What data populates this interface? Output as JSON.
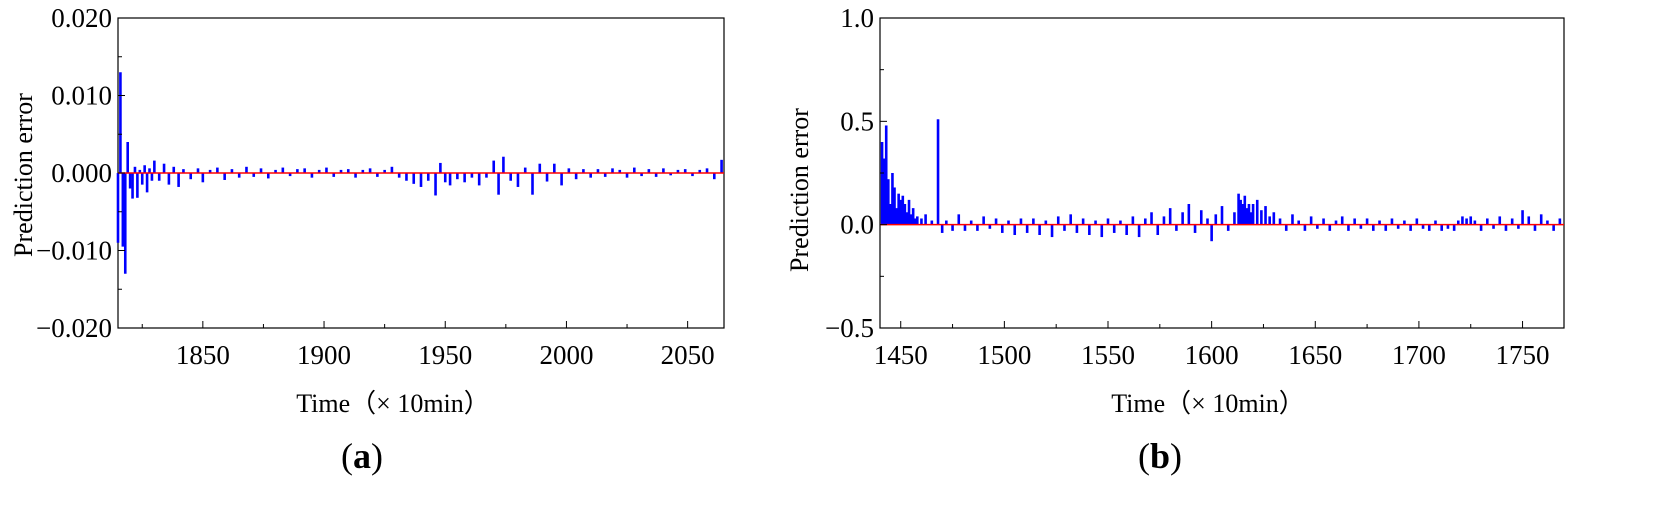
{
  "colors": {
    "series": "#0000ff",
    "zero_line": "#ff0000",
    "axis": "#000000",
    "background": "#ffffff"
  },
  "chart_data": [
    {
      "panel": "a",
      "type": "bar",
      "panel_label_open": "(",
      "panel_label_letter": "a",
      "panel_label_close": ")",
      "xlabel": "Time（× 10min）",
      "ylabel": "Prediction error",
      "xlim": [
        1815,
        2065
      ],
      "ylim": [
        -0.02,
        0.02
      ],
      "xticks": [
        1850,
        1900,
        1950,
        2000,
        2050
      ],
      "xtick_labels": [
        "1850",
        "1900",
        "1950",
        "2000",
        "2050"
      ],
      "yticks": [
        -0.02,
        -0.01,
        0.0,
        0.01,
        0.02
      ],
      "ytick_labels": [
        "−0.020",
        "−0.010",
        "0.000",
        "0.010",
        "0.020"
      ],
      "grid": false,
      "series": [
        {
          "x": [
            1815,
            1816,
            1817,
            1818,
            1819,
            1820,
            1821,
            1822,
            1823,
            1824,
            1825,
            1826,
            1827,
            1828,
            1829,
            1830,
            1832,
            1834,
            1836,
            1838,
            1840,
            1842,
            1845,
            1848,
            1850,
            1853,
            1856,
            1859,
            1862,
            1865,
            1868,
            1871,
            1874,
            1877,
            1880,
            1883,
            1886,
            1889,
            1892,
            1895,
            1898,
            1901,
            1904,
            1907,
            1910,
            1913,
            1916,
            1919,
            1922,
            1925,
            1928,
            1931,
            1934,
            1937,
            1940,
            1943,
            1946,
            1948,
            1950,
            1952,
            1955,
            1958,
            1961,
            1964,
            1967,
            1970,
            1972,
            1974,
            1977,
            1980,
            1983,
            1986,
            1989,
            1992,
            1995,
            1998,
            2001,
            2004,
            2007,
            2010,
            2013,
            2016,
            2019,
            2022,
            2025,
            2028,
            2031,
            2034,
            2037,
            2040,
            2043,
            2046,
            2049,
            2052,
            2055,
            2058,
            2061,
            2064
          ],
          "values": [
            -0.009,
            0.013,
            -0.0095,
            -0.013,
            0.004,
            -0.002,
            -0.0033,
            0.0008,
            -0.0032,
            0.0004,
            -0.0015,
            0.001,
            -0.0025,
            0.0006,
            -0.001,
            0.0016,
            -0.001,
            0.0012,
            -0.0015,
            0.0008,
            -0.0018,
            0.0005,
            -0.0008,
            0.0006,
            -0.0012,
            0.0004,
            0.0007,
            -0.0009,
            0.0005,
            -0.0006,
            0.0008,
            -0.0005,
            0.0006,
            -0.0007,
            0.0004,
            0.0007,
            -0.0004,
            0.0005,
            0.0006,
            -0.0006,
            0.0004,
            0.0007,
            -0.0005,
            0.0004,
            0.0005,
            -0.0006,
            0.0004,
            0.0006,
            -0.0005,
            0.0004,
            0.0008,
            -0.0006,
            -0.001,
            -0.0014,
            -0.0018,
            -0.001,
            -0.0029,
            0.0013,
            -0.0012,
            -0.0016,
            -0.0008,
            -0.0012,
            -0.0006,
            -0.0016,
            -0.0006,
            0.0016,
            -0.0028,
            0.0021,
            -0.001,
            -0.0018,
            0.0007,
            -0.0028,
            0.0012,
            -0.0011,
            0.0012,
            -0.0016,
            0.0006,
            -0.0008,
            0.0005,
            -0.0006,
            0.0005,
            -0.0005,
            0.0006,
            0.0004,
            -0.0006,
            0.0007,
            -0.0004,
            0.0005,
            -0.0005,
            0.0006,
            -0.0003,
            0.0004,
            0.0005,
            -0.0004,
            0.0004,
            0.0006,
            -0.0008,
            0.0017
          ]
        }
      ]
    },
    {
      "panel": "b",
      "type": "bar",
      "panel_label_open": "(",
      "panel_label_letter": "b",
      "panel_label_close": ")",
      "xlabel": "Time（×  10min）",
      "ylabel": "Prediction error",
      "xlim": [
        1440,
        1770
      ],
      "ylim": [
        -0.5,
        1.0
      ],
      "xticks": [
        1450,
        1500,
        1550,
        1600,
        1650,
        1700,
        1750
      ],
      "xtick_labels": [
        "1450",
        "1500",
        "1550",
        "1600",
        "1650",
        "1700",
        "1750"
      ],
      "yticks": [
        -0.5,
        0.0,
        0.5,
        1.0
      ],
      "ytick_labels": [
        "−0.5",
        "0.0",
        "0.5",
        "1.0"
      ],
      "grid": false,
      "series": [
        {
          "x": [
            1441,
            1442,
            1443,
            1444,
            1445,
            1446,
            1447,
            1448,
            1449,
            1450,
            1451,
            1452,
            1453,
            1454,
            1455,
            1456,
            1457,
            1458,
            1460,
            1462,
            1465,
            1468,
            1470,
            1472,
            1475,
            1478,
            1481,
            1484,
            1487,
            1490,
            1493,
            1496,
            1499,
            1502,
            1505,
            1508,
            1511,
            1514,
            1517,
            1520,
            1523,
            1526,
            1529,
            1532,
            1535,
            1538,
            1541,
            1544,
            1547,
            1550,
            1553,
            1556,
            1559,
            1562,
            1565,
            1568,
            1571,
            1574,
            1577,
            1580,
            1583,
            1586,
            1589,
            1592,
            1595,
            1598,
            1600,
            1602,
            1605,
            1608,
            1611,
            1613,
            1614,
            1615,
            1616,
            1617,
            1618,
            1619,
            1620,
            1622,
            1624,
            1626,
            1628,
            1630,
            1633,
            1636,
            1639,
            1642,
            1645,
            1648,
            1651,
            1654,
            1657,
            1660,
            1663,
            1666,
            1669,
            1672,
            1675,
            1678,
            1681,
            1684,
            1687,
            1690,
            1693,
            1696,
            1699,
            1702,
            1705,
            1708,
            1711,
            1714,
            1717,
            1719,
            1721,
            1723,
            1725,
            1727,
            1730,
            1733,
            1736,
            1739,
            1742,
            1745,
            1748,
            1750,
            1753,
            1756,
            1759,
            1762,
            1765,
            1768
          ],
          "values": [
            0.4,
            0.32,
            0.48,
            0.22,
            0.1,
            0.25,
            0.18,
            0.08,
            0.15,
            0.12,
            0.14,
            0.1,
            0.06,
            0.12,
            0.05,
            0.08,
            0.03,
            0.04,
            0.03,
            0.05,
            0.02,
            0.51,
            -0.04,
            0.02,
            -0.03,
            0.05,
            -0.03,
            0.02,
            -0.03,
            0.04,
            -0.02,
            0.03,
            -0.04,
            0.02,
            -0.05,
            0.03,
            -0.04,
            0.03,
            -0.05,
            0.02,
            -0.06,
            0.04,
            -0.03,
            0.05,
            -0.04,
            0.03,
            -0.05,
            0.02,
            -0.06,
            0.03,
            -0.04,
            0.02,
            -0.05,
            0.04,
            -0.06,
            0.03,
            0.06,
            -0.05,
            0.04,
            0.08,
            -0.03,
            0.06,
            0.1,
            -0.04,
            0.07,
            0.03,
            -0.08,
            0.05,
            0.09,
            -0.03,
            0.06,
            0.15,
            0.12,
            0.1,
            0.14,
            0.08,
            0.1,
            0.06,
            0.1,
            0.12,
            0.07,
            0.09,
            0.04,
            0.06,
            0.03,
            -0.03,
            0.05,
            0.02,
            -0.03,
            0.04,
            -0.02,
            0.03,
            -0.03,
            0.02,
            0.04,
            -0.03,
            0.03,
            -0.02,
            0.03,
            -0.03,
            0.02,
            -0.03,
            0.03,
            -0.02,
            0.02,
            -0.03,
            0.03,
            -0.02,
            -0.03,
            0.02,
            -0.03,
            -0.02,
            -0.03,
            0.02,
            0.04,
            0.03,
            0.04,
            0.02,
            -0.03,
            0.03,
            -0.02,
            0.04,
            -0.03,
            0.03,
            -0.02,
            0.07,
            0.04,
            -0.03,
            0.05,
            0.02,
            -0.03,
            0.03
          ]
        }
      ]
    }
  ]
}
